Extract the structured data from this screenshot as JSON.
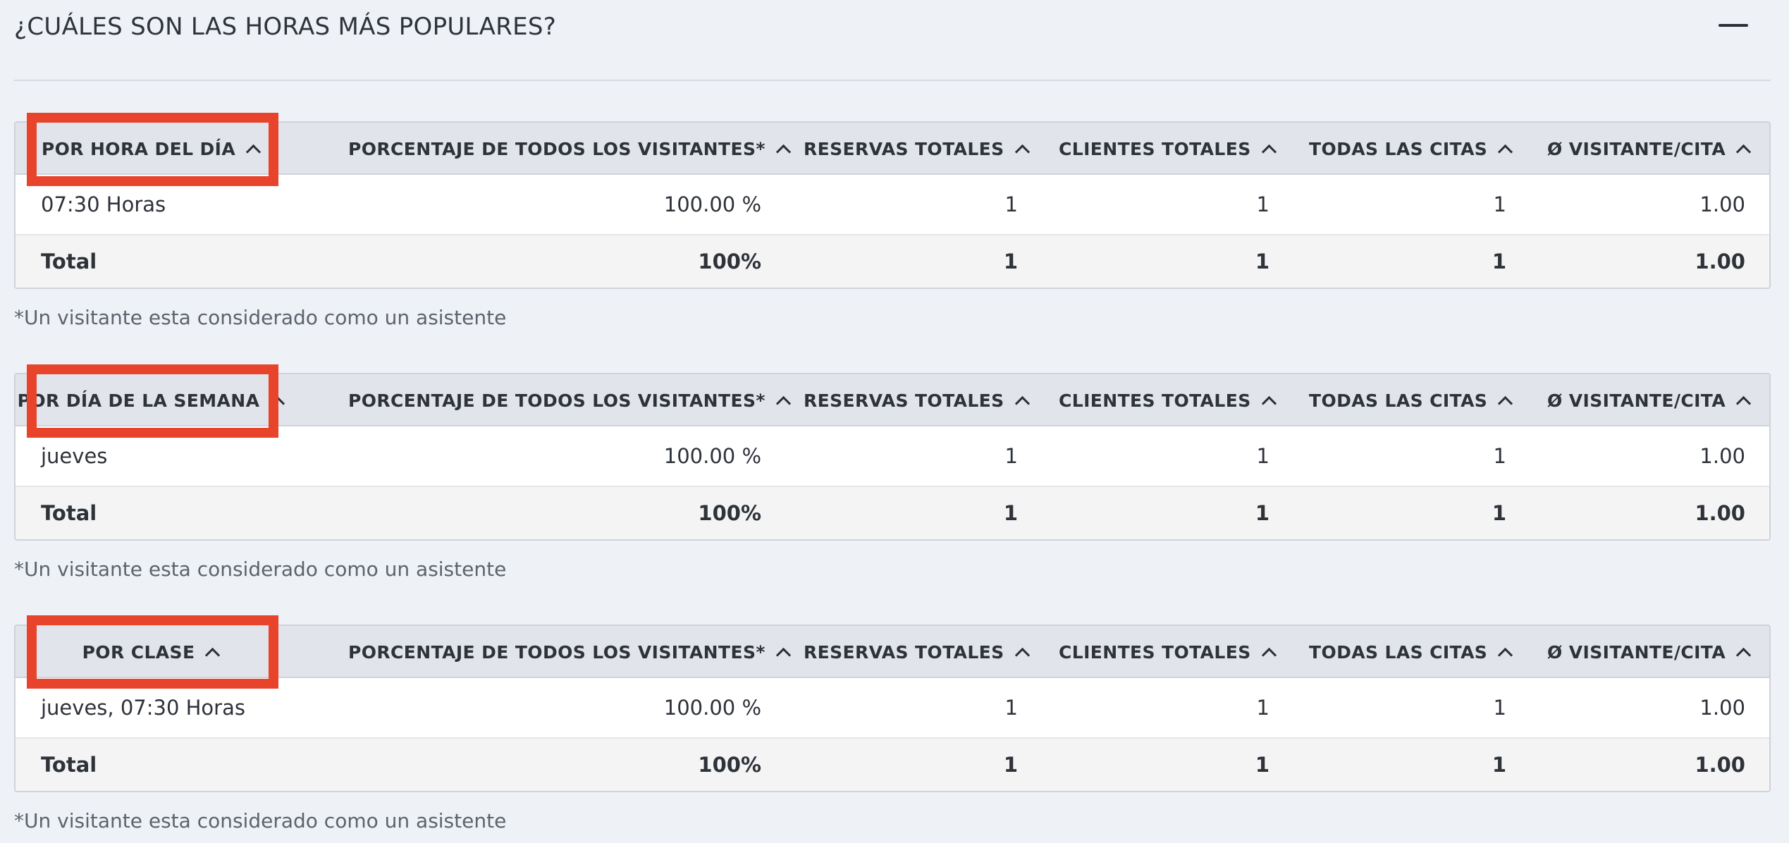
{
  "title": "¿CUÁLES SON LAS HORAS MÁS POPULARES?",
  "columns": {
    "percent": "PORCENTAJE DE TODOS LOS VISITANTES*",
    "bookings": "RESERVAS TOTALES",
    "clients": "CLIENTES TOTALES",
    "appointments": "TODAS LAS CITAS",
    "avg": "Ø VISITANTE/CITA"
  },
  "footnote": "*Un visitante esta considerado como un asistente",
  "highlight_color": "#e8432b",
  "icons": {
    "collapse": "minus-icon",
    "sort": "chevron-up-icon"
  },
  "tables": [
    {
      "first_column": "POR HORA DEL DÍA",
      "row": {
        "label": "07:30 Horas",
        "percent": "100.00 %",
        "bookings": "1",
        "clients": "1",
        "appointments": "1",
        "avg": "1.00"
      },
      "total": {
        "label": "Total",
        "percent": "100%",
        "bookings": "1",
        "clients": "1",
        "appointments": "1",
        "avg": "1.00"
      }
    },
    {
      "first_column": "POR DÍA DE LA SEMANA",
      "row": {
        "label": "jueves",
        "percent": "100.00 %",
        "bookings": "1",
        "clients": "1",
        "appointments": "1",
        "avg": "1.00"
      },
      "total": {
        "label": "Total",
        "percent": "100%",
        "bookings": "1",
        "clients": "1",
        "appointments": "1",
        "avg": "1.00"
      }
    },
    {
      "first_column": "POR CLASE",
      "row": {
        "label": "jueves, 07:30 Horas",
        "percent": "100.00 %",
        "bookings": "1",
        "clients": "1",
        "appointments": "1",
        "avg": "1.00"
      },
      "total": {
        "label": "Total",
        "percent": "100%",
        "bookings": "1",
        "clients": "1",
        "appointments": "1",
        "avg": "1.00"
      }
    }
  ]
}
